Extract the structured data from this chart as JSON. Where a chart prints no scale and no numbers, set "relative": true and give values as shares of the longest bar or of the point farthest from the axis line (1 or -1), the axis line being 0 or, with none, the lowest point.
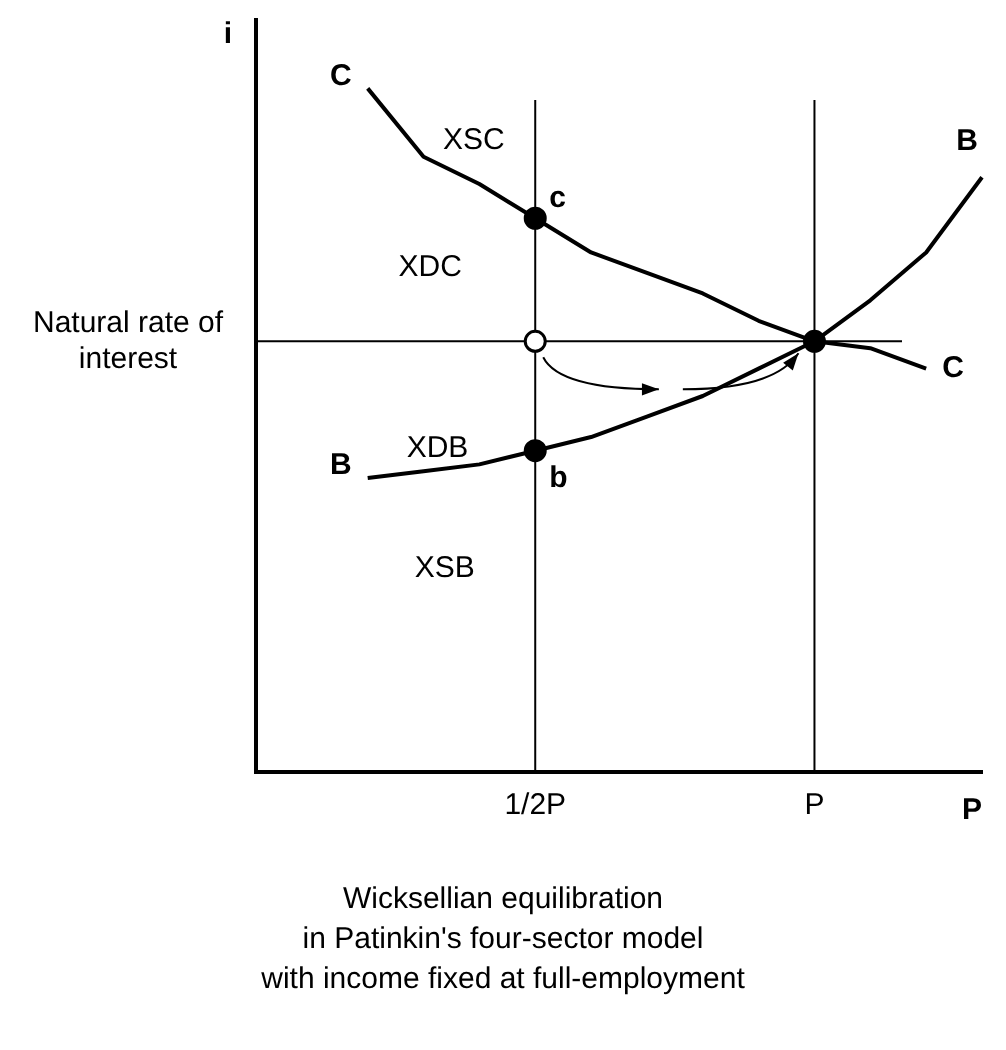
{
  "chart_data": {
    "type": "line",
    "relative": true,
    "title": "Wicksellian equilibration\nin Patinkin's four-sector model\nwith income fixed at full-employment",
    "ylabel": "i",
    "xlabel": "P",
    "categories": [
      null,
      null,
      null,
      null,
      null,
      "1/2P",
      null,
      null,
      null,
      null,
      "P",
      null,
      null,
      null
    ],
    "tick_labels": "x",
    "grid": false,
    "legend": false,
    "marker": "none",
    "line_style": "solid",
    "series": [
      {
        "name": "C",
        "color": "#000000",
        "values": [
          null,
          null,
          1.0,
          0.9,
          0.86,
          0.81,
          0.76,
          0.73,
          0.7,
          0.66,
          0.63,
          0.62,
          0.59,
          null
        ]
      },
      {
        "name": "B",
        "color": "#000000",
        "values": [
          null,
          null,
          0.43,
          0.44,
          0.45,
          0.47,
          0.49,
          0.52,
          0.55,
          0.59,
          0.63,
          0.69,
          0.76,
          0.87
        ]
      },
      {
        "type": "scatter",
        "marker": "circle",
        "color": "#000000",
        "x": [
          "1/2P",
          "1/2P",
          "P"
        ],
        "values": [
          0.81,
          0.47,
          0.63
        ]
      },
      {
        "type": "scatter",
        "marker": "circle",
        "color": "#ffffff",
        "x": [
          "1/2P"
        ],
        "values": [
          0.63
        ]
      }
    ],
    "ref_lines": [
      {
        "axis": "y",
        "value": 0.63,
        "label": "Natural rate of interest"
      },
      {
        "axis": "x",
        "value": "1/2P"
      },
      {
        "axis": "x",
        "value": "P"
      }
    ],
    "annotations": [
      {
        "text": "c",
        "x": "1/2P",
        "y": 0.81
      },
      {
        "text": "b",
        "x": "1/2P",
        "y": 0.47
      },
      "XSC",
      "XDC",
      "XDB",
      "XSB"
    ]
  }
}
